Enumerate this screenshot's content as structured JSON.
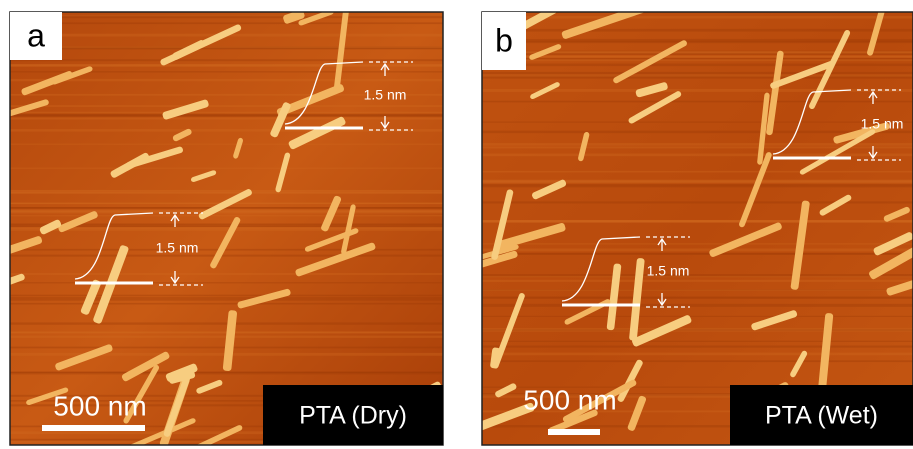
{
  "panels": [
    {
      "label": "a",
      "scale_bar": "500 nm",
      "caption": "PTA (Dry)",
      "profiles": [
        {
          "height": "1.5 nm"
        },
        {
          "height": "1.5 nm"
        }
      ]
    },
    {
      "label": "b",
      "scale_bar": "500 nm",
      "caption": "PTA (Wet)",
      "profiles": [
        {
          "height": "1.5 nm"
        },
        {
          "height": "1.5 nm"
        }
      ]
    }
  ]
}
